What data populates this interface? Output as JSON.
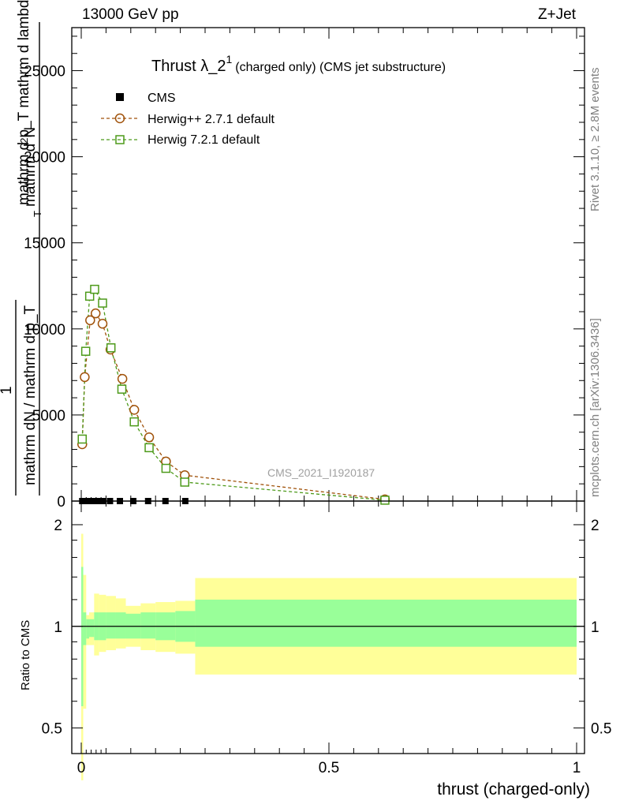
{
  "header": {
    "left": "13000 GeV pp",
    "right": "Z+Jet"
  },
  "side_labels": {
    "upper": "Rivet 3.1.10, ≥ 2.8M events",
    "lower": "mcplots.cern.ch [arXiv:1306.3436]"
  },
  "watermark": "CMS_2021_I1920187",
  "main_plot": {
    "title_main": "Thrust λ_2",
    "title_sup": "1",
    "title_rest": "(charged only) (CMS jet substructure)",
    "ylabel_top": "mathrm d",
    "ylabel_top_sup": "2",
    "ylabel_top_rest": "N",
    "ylabel_den": "mathrm d p_T mathrm d lambda",
    "ylabel_sub": "T",
    "ylabel_left_num": "1",
    "ylabel_left_den": "mathrm dN / mathrm d p_T",
    "ytick_labels": [
      "0",
      "5000",
      "10000",
      "15000",
      "20000",
      "25000"
    ]
  },
  "ratio_plot": {
    "ylabel": "Ratio to CMS",
    "ytick_labels": [
      "0.5",
      "1",
      "2"
    ],
    "xtick_labels": [
      "0",
      "0.5",
      "1"
    ],
    "xlabel": "thrust (charged-only)"
  },
  "colors": {
    "cms": "#000000",
    "herwig_pp": "#a0520a",
    "herwig_7": "#4d9a1a",
    "band_outer": "#ffff99",
    "band_inner": "#99ff99"
  },
  "chart_data": [
    {
      "type": "scatter",
      "title": "Thrust λ_2^1 (charged only) (CMS jet substructure)",
      "xlim": [
        0,
        1
      ],
      "ylim": [
        0,
        27500
      ],
      "legend_position": "top-left",
      "series": [
        {
          "name": "CMS",
          "marker": "filled-square",
          "x": [
            0.002,
            0.007,
            0.013,
            0.021,
            0.031,
            0.043,
            0.058,
            0.078,
            0.105,
            0.135,
            0.17,
            0.21
          ],
          "y": [
            0,
            0,
            0,
            0,
            0,
            0,
            0,
            0,
            0,
            0,
            0,
            0
          ]
        },
        {
          "name": "Herwig++ 2.7.1 default",
          "marker": "open-circle",
          "line": "dashed",
          "x": [
            0.002,
            0.007,
            0.018,
            0.029,
            0.043,
            0.059,
            0.083,
            0.107,
            0.137,
            0.171,
            0.209,
            0.613
          ],
          "y": [
            3300,
            7200,
            10500,
            10900,
            10300,
            8800,
            7100,
            5300,
            3700,
            2300,
            1500,
            100
          ]
        },
        {
          "name": "Herwig 7.2.1 default",
          "marker": "open-square",
          "line": "dashed",
          "x": [
            0.002,
            0.009,
            0.017,
            0.027,
            0.043,
            0.06,
            0.082,
            0.107,
            0.137,
            0.171,
            0.209,
            0.613
          ],
          "y": [
            3600,
            8700,
            11900,
            12300,
            11500,
            8900,
            6500,
            4600,
            3100,
            1900,
            1100,
            50
          ]
        }
      ]
    },
    {
      "type": "area",
      "ylabel": "Ratio to CMS",
      "xlabel": "thrust (charged-only)",
      "xlim": [
        0,
        1
      ],
      "ylim": [
        0.42,
        2.35
      ],
      "y_scale": "log",
      "reference_line": 1,
      "bands": {
        "edges": [
          0,
          0.004,
          0.01,
          0.016,
          0.026,
          0.036,
          0.05,
          0.07,
          0.09,
          0.12,
          0.15,
          0.19,
          0.23,
          1.0
        ],
        "outer_lo": [
          0.35,
          0.57,
          0.88,
          0.88,
          0.82,
          0.84,
          0.85,
          0.86,
          0.87,
          0.85,
          0.84,
          0.83,
          0.72
        ],
        "outer_hi": [
          1.88,
          1.42,
          1.08,
          1.1,
          1.25,
          1.24,
          1.23,
          1.21,
          1.15,
          1.17,
          1.18,
          1.19,
          1.39
        ],
        "inner_lo": [
          0.58,
          0.88,
          0.92,
          0.93,
          0.91,
          0.91,
          0.92,
          0.92,
          0.92,
          0.92,
          0.91,
          0.9,
          0.87
        ],
        "inner_hi": [
          1.5,
          1.1,
          1.05,
          1.05,
          1.1,
          1.1,
          1.1,
          1.1,
          1.09,
          1.1,
          1.1,
          1.11,
          1.2
        ]
      }
    }
  ]
}
